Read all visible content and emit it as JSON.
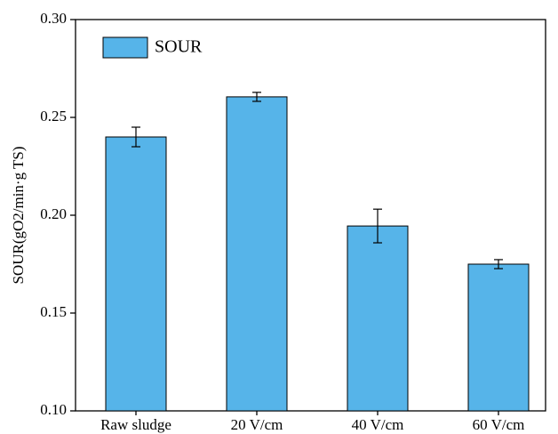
{
  "chart_data": {
    "type": "bar",
    "y_label": "SOUR(gO2/min·g TS)",
    "categories": [
      "Raw sludge",
      "20 V/cm",
      "40 V/cm",
      "60 V/cm"
    ],
    "series": [
      {
        "name": "SOUR",
        "color": "#56b4e9",
        "values": [
          0.24,
          0.2605,
          0.1945,
          0.175
        ],
        "errors": [
          0.005,
          0.0023,
          0.0086,
          0.0023
        ]
      }
    ],
    "ylim": [
      0.1,
      0.3
    ],
    "yticks": [
      {
        "value": 0.1,
        "label": "0.10"
      },
      0.15,
      {
        "value": 0.2,
        "label": "0.20"
      },
      0.25,
      {
        "value": 0.3,
        "label": "0.30"
      }
    ],
    "legend": "top-left",
    "grid": false
  }
}
